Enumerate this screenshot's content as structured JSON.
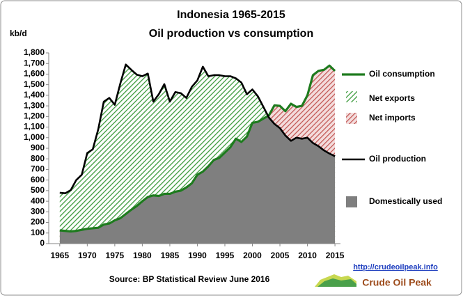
{
  "chart_data": {
    "type": "area",
    "title": "Indonesia 1965-2015",
    "subtitle": "Oil production vs consumption",
    "y_label": "kb/d",
    "source": "Source: BP Statistical Review  June 2016",
    "url": "http://crudeoilpeak.info",
    "brand": "Crude Oil Peak",
    "x": [
      1965,
      1966,
      1967,
      1968,
      1969,
      1970,
      1971,
      1972,
      1973,
      1974,
      1975,
      1976,
      1977,
      1978,
      1979,
      1980,
      1981,
      1982,
      1983,
      1984,
      1985,
      1986,
      1987,
      1988,
      1989,
      1990,
      1991,
      1992,
      1993,
      1994,
      1995,
      1996,
      1997,
      1998,
      1999,
      2000,
      2001,
      2002,
      2003,
      2004,
      2005,
      2006,
      2007,
      2008,
      2009,
      2010,
      2011,
      2012,
      2013,
      2014,
      2015
    ],
    "series": [
      {
        "name": "Oil consumption",
        "color": "#1e7b1e",
        "values": [
          125,
          120,
          115,
          120,
          130,
          140,
          145,
          150,
          180,
          190,
          220,
          240,
          280,
          320,
          355,
          400,
          440,
          455,
          450,
          470,
          470,
          490,
          500,
          530,
          570,
          650,
          680,
          730,
          790,
          810,
          860,
          910,
          990,
          960,
          1010,
          1140,
          1150,
          1180,
          1210,
          1305,
          1300,
          1250,
          1320,
          1290,
          1300,
          1400,
          1590,
          1630,
          1640,
          1680,
          1630
        ]
      },
      {
        "name": "Oil production",
        "color": "#000000",
        "values": [
          480,
          475,
          505,
          600,
          650,
          855,
          890,
          1080,
          1340,
          1375,
          1310,
          1510,
          1690,
          1640,
          1595,
          1580,
          1605,
          1340,
          1410,
          1505,
          1340,
          1430,
          1420,
          1375,
          1480,
          1540,
          1670,
          1580,
          1590,
          1590,
          1580,
          1580,
          1560,
          1520,
          1410,
          1455,
          1390,
          1290,
          1190,
          1130,
          1090,
          1020,
          970,
          1000,
          990,
          1000,
          950,
          920,
          880,
          850,
          825
        ]
      }
    ],
    "areas": [
      {
        "name": "Net exports",
        "color": "#3c9a3c"
      },
      {
        "name": "Net imports",
        "color": "#c0504d"
      },
      {
        "name": "Domestically used",
        "color": "#7f7f7f"
      }
    ],
    "xlim": [
      1963,
      2016
    ],
    "xticks": [
      1965,
      1970,
      1975,
      1980,
      1985,
      1990,
      1995,
      2000,
      2005,
      2010,
      2015
    ],
    "ylim": [
      0,
      1800
    ],
    "yticks": [
      0,
      100,
      200,
      300,
      400,
      500,
      600,
      700,
      800,
      900,
      {
        "value": 1000,
        "label": "1,000"
      },
      {
        "value": 1100,
        "label": "1,100"
      },
      {
        "value": 1200,
        "label": "1,200"
      },
      {
        "value": 1300,
        "label": "1,300"
      },
      {
        "value": 1400,
        "label": "1,400"
      },
      {
        "value": 1500,
        "label": "1,500"
      },
      {
        "value": 1600,
        "label": "1,600"
      },
      {
        "value": 1700,
        "label": "1,700"
      },
      {
        "value": 1800,
        "label": "1,800"
      }
    ]
  }
}
